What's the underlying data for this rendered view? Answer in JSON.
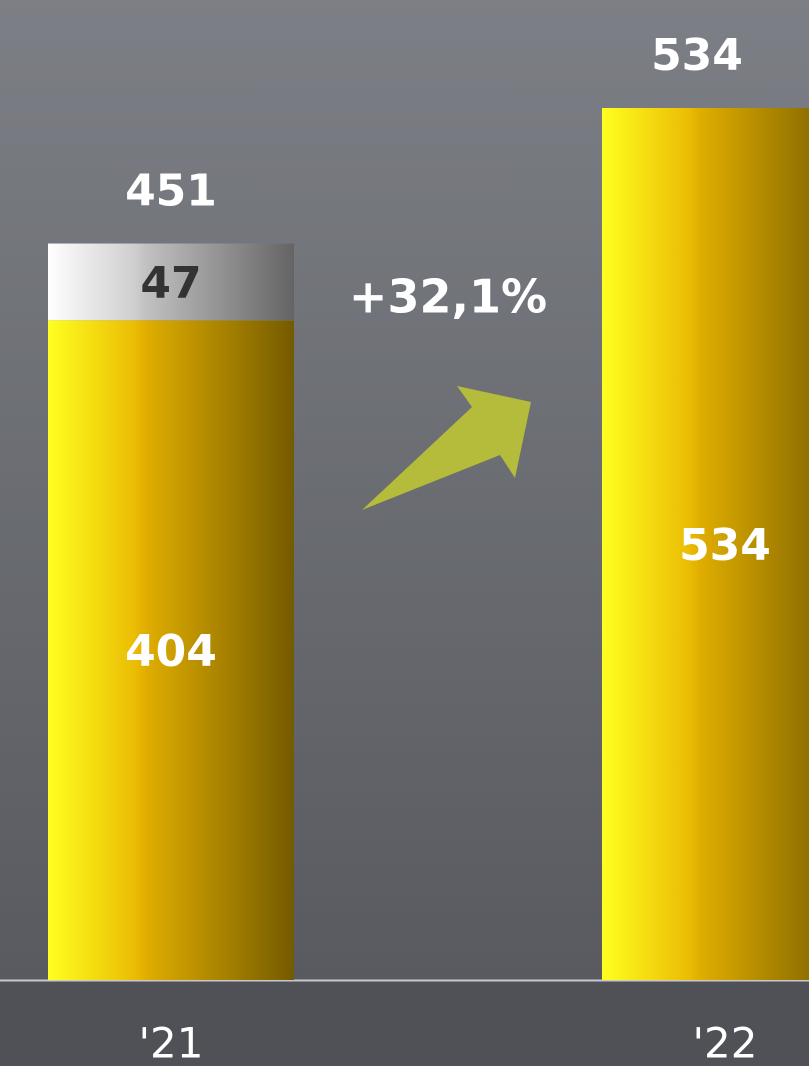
{
  "chart_data": {
    "type": "stacked_bar",
    "categories": [
      "'21",
      "'22"
    ],
    "series": [
      {
        "color": "#e8b400",
        "values": [
          404,
          534
        ]
      },
      {
        "color": "#c8c8c8",
        "values": [
          47,
          null
        ]
      }
    ],
    "totals": [
      451,
      534
    ],
    "annotation": "+32,1%"
  }
}
